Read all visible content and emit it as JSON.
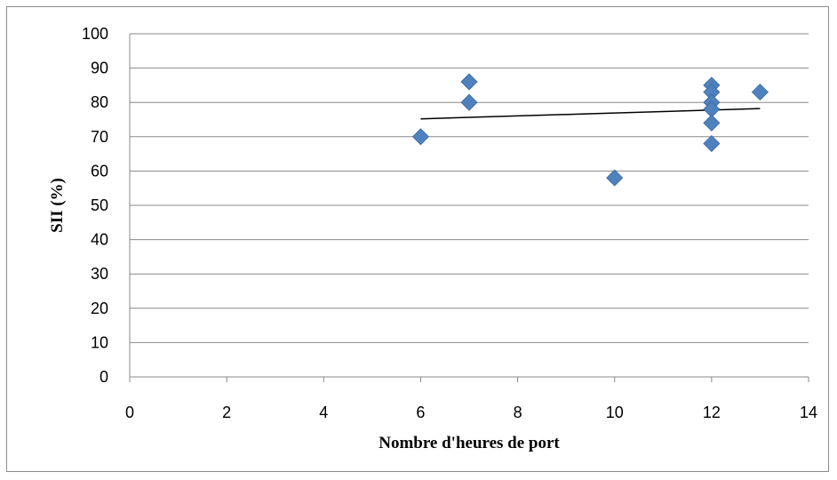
{
  "chart_data": {
    "type": "scatter",
    "xlabel": "Nombre d'heures de port",
    "ylabel": "SII (%)",
    "xlim": [
      0,
      14
    ],
    "ylim": [
      0,
      100
    ],
    "x_ticks": [
      "0",
      "2",
      "4",
      "6",
      "8",
      "10",
      "12",
      "14"
    ],
    "y_ticks": [
      "0",
      "10",
      "20",
      "30",
      "40",
      "50",
      "60",
      "70",
      "80",
      "90",
      "100"
    ],
    "grid": "horizontal",
    "marker": "diamond",
    "marker_color": "#4F81BD",
    "trendline_color": "#000000",
    "points": [
      {
        "x": 6,
        "y": 70
      },
      {
        "x": 7,
        "y": 86
      },
      {
        "x": 7,
        "y": 80
      },
      {
        "x": 10,
        "y": 58
      },
      {
        "x": 12,
        "y": 85
      },
      {
        "x": 12,
        "y": 83
      },
      {
        "x": 12,
        "y": 80
      },
      {
        "x": 12,
        "y": 78
      },
      {
        "x": 12,
        "y": 74
      },
      {
        "x": 12,
        "y": 68
      },
      {
        "x": 13,
        "y": 83
      }
    ],
    "trendline": {
      "type": "linear",
      "x": [
        6,
        13
      ],
      "y": [
        75.2,
        78.2
      ]
    }
  }
}
